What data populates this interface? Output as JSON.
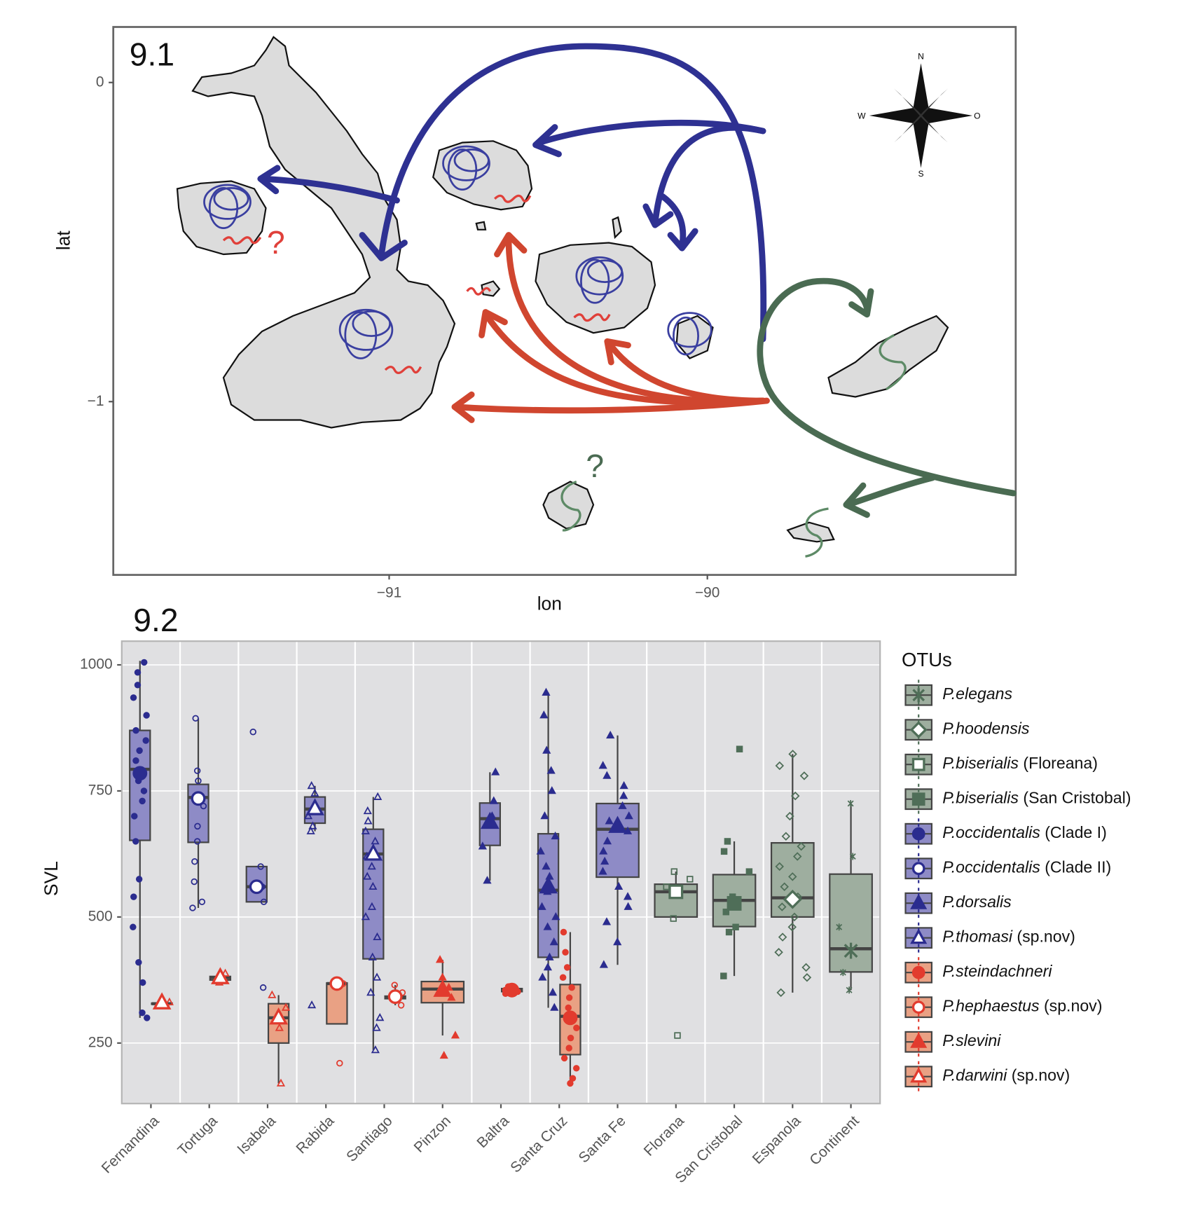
{
  "chart_data": [
    {
      "type": "map",
      "label": "9.1",
      "xlabel": "lon",
      "ylabel": "lat",
      "xlim": [
        -91.867,
        -89.031
      ],
      "ylim": [
        -1.543,
        0.174
      ],
      "xticks": [
        {
          "value": -91,
          "label": "−91"
        },
        {
          "value": -90,
          "label": "−90"
        }
      ],
      "yticks": [
        0,
        {
          "value": -1,
          "label": "−1"
        }
      ],
      "compass": [
        "N",
        "W",
        "O",
        "S"
      ],
      "annotations": [
        {
          "text": "?",
          "color": "#e0403a"
        },
        {
          "text": "?",
          "color": "#4a6b52"
        }
      ]
    },
    {
      "type": "box",
      "label": "9.2",
      "ylabel": "SVL",
      "legend_title": "OTUs",
      "categories": [
        "Fernandina",
        "Tortuga",
        "Isabela",
        "Rabida",
        "Santiago",
        "Pinzon",
        "Baltra",
        "Santa Cruz",
        "Santa Fe",
        "Florana",
        "San Cristobal",
        "Espanola",
        "Continent"
      ],
      "ylim": [
        130,
        1047
      ],
      "yticks": [
        250,
        500,
        750,
        1000
      ],
      "grid": true,
      "series": [
        {
          "name": "P.elegans",
          "color": "#4f6e58",
          "fill": "#9eae9f",
          "marker": "asterisk",
          "boxes": [
            {
              "category": "Continent",
              "stats": [
                355,
                391,
                437,
                585,
                725
              ],
              "mean": 433,
              "points": [
                725,
                620,
                480,
                390,
                355
              ]
            }
          ]
        },
        {
          "name": "P.hoodensis",
          "color": "#4f6e58",
          "fill": "#9eae9f",
          "marker": "diamond-open",
          "boxes": [
            {
              "category": "Espanola",
              "stats": [
                350,
                500,
                538,
                647,
                823
              ],
              "mean": 535,
              "points": [
                823,
                800,
                780,
                740,
                700,
                660,
                640,
                620,
                600,
                580,
                560,
                540,
                520,
                500,
                480,
                460,
                430,
                400,
                380,
                350
              ]
            }
          ]
        },
        {
          "name": "P.biserialis (Floreana)",
          "color": "#4f6e58",
          "fill": "#9eae9f",
          "marker": "square-open",
          "boxes": [
            {
              "category": "Florana",
              "stats": [
                497,
                500,
                550,
                565,
                590
              ],
              "mean": 550,
              "points": [
                590,
                575,
                560,
                497,
                265
              ]
            }
          ]
        },
        {
          "name": "P.biserialis (San Cristobal)",
          "color": "#4f6e58",
          "fill": "#9eae9f",
          "marker": "square",
          "boxes": [
            {
              "category": "San Cristobal",
              "stats": [
                383,
                481,
                533,
                584,
                650
              ],
              "mean": 527,
              "points": [
                833,
                650,
                630,
                590,
                540,
                510,
                480,
                470,
                383
              ]
            }
          ]
        },
        {
          "name": "P.occidentalis (Clade I)",
          "color": "#2b2c8f",
          "fill": "#8e8bc6",
          "marker": "circle",
          "boxes": [
            {
              "category": "Fernandina",
              "stats": [
                300,
                652,
                793,
                870,
                1008
              ],
              "mean": 785,
              "points": [
                1005,
                985,
                960,
                935,
                900,
                870,
                850,
                830,
                810,
                790,
                770,
                750,
                730,
                700,
                650,
                575,
                540,
                480,
                410,
                370,
                310,
                300
              ]
            }
          ]
        },
        {
          "name": "P.occidentalis (Clade II)",
          "color": "#2b2c8f",
          "fill": "#8e8bc6",
          "marker": "circle-open",
          "boxes": [
            {
              "category": "Tortuga",
              "stats": [
                518,
                648,
                737,
                763,
                894
              ],
              "mean": 735,
              "points": [
                894,
                790,
                770,
                740,
                720,
                680,
                650,
                610,
                570,
                530,
                518
              ]
            },
            {
              "category": "Isabela",
              "stats": [
                530,
                530,
                560,
                600,
                600
              ],
              "mean": 560,
              "points": [
                867,
                600,
                560,
                530,
                360
              ]
            }
          ]
        },
        {
          "name": "P.dorsalis",
          "color": "#2b2c8f",
          "fill": "#8e8bc6",
          "marker": "triangle",
          "boxes": [
            {
              "category": "Baltra",
              "stats": [
                572,
                642,
                695,
                726,
                787
              ],
              "mean": 688,
              "points": [
                787,
                730,
                700,
                690,
                640,
                572
              ]
            },
            {
              "category": "Santa Cruz",
              "stats": [
                320,
                420,
                553,
                665,
                945
              ],
              "mean": 560,
              "points": [
                945,
                900,
                830,
                790,
                750,
                700,
                660,
                630,
                600,
                580,
                550,
                520,
                500,
                480,
                450,
                420,
                400,
                380,
                350,
                320
              ]
            },
            {
              "category": "Santa Fe",
              "stats": [
                405,
                579,
                674,
                725,
                860
              ],
              "mean": 680,
              "points": [
                860,
                800,
                780,
                760,
                740,
                720,
                700,
                690,
                670,
                650,
                630,
                610,
                590,
                560,
                540,
                520,
                490,
                450,
                405
              ]
            }
          ]
        },
        {
          "name": "P.thomasi (sp.nov)",
          "color": "#2b2c8f",
          "fill": "#8e8bc6",
          "marker": "triangle-open",
          "boxes": [
            {
              "category": "Rabida",
              "stats": [
                670,
                686,
                714,
                738,
                760
              ],
              "mean": 715,
              "points": [
                760,
                745,
                700,
                680,
                670,
                325
              ]
            },
            {
              "category": "Santiago",
              "stats": [
                236,
                417,
                625,
                674,
                738
              ],
              "mean": 625,
              "points": [
                738,
                710,
                690,
                670,
                650,
                620,
                600,
                580,
                560,
                520,
                500,
                460,
                420,
                380,
                350,
                300,
                280,
                236
              ]
            }
          ]
        },
        {
          "name": "P.steindachneri",
          "color": "#e23b2e",
          "fill": "#e9a184",
          "marker": "circle",
          "boxes": [
            {
              "category": "Baltra",
              "stats": [
                348,
                352,
                355,
                358,
                362
              ],
              "mean": 355,
              "points": [
                362,
                358,
                355,
                352,
                348
              ]
            },
            {
              "category": "Santa Cruz",
              "stats": [
                170,
                227,
                303,
                366,
                470
              ],
              "mean": 300,
              "points": [
                470,
                430,
                400,
                380,
                360,
                340,
                320,
                300,
                280,
                260,
                240,
                220,
                200,
                180,
                170
              ]
            }
          ]
        },
        {
          "name": "P.hephaestus (sp.nov)",
          "color": "#e23b2e",
          "fill": "#e9a184",
          "marker": "circle-open",
          "boxes": [
            {
              "category": "Rabida",
              "stats": [
                288,
                288,
                368,
                369,
                369
              ],
              "mean": 368,
              "points": [
                368,
                210
              ]
            },
            {
              "category": "Santiago",
              "stats": [
                325,
                338,
                340,
                343,
                365
              ],
              "mean": 342,
              "points": [
                365,
                350,
                325
              ]
            }
          ]
        },
        {
          "name": "P.slevini",
          "color": "#e23b2e",
          "fill": "#e9a184",
          "marker": "triangle",
          "boxes": [
            {
              "category": "Pinzon",
              "stats": [
                265,
                330,
                357,
                372,
                415
              ],
              "mean": 355,
              "points": [
                415,
                380,
                360,
                340,
                265,
                225
              ]
            }
          ]
        },
        {
          "name": "P.darwini (sp.nov)",
          "color": "#e23b2e",
          "fill": "#e9a184",
          "marker": "triangle-open",
          "boxes": [
            {
              "category": "Fernandina",
              "stats": [
                325,
                327,
                328,
                329,
                331
              ],
              "mean": 330,
              "points": [
                331,
                325
              ]
            },
            {
              "category": "Tortuga",
              "stats": [
                370,
                375,
                380,
                382,
                388
              ],
              "mean": 380,
              "points": [
                388,
                370
              ]
            },
            {
              "category": "Isabela",
              "stats": [
                170,
                250,
                300,
                328,
                345
              ],
              "mean": 300,
              "points": [
                345,
                320,
                280,
                170
              ]
            }
          ]
        }
      ]
    }
  ]
}
